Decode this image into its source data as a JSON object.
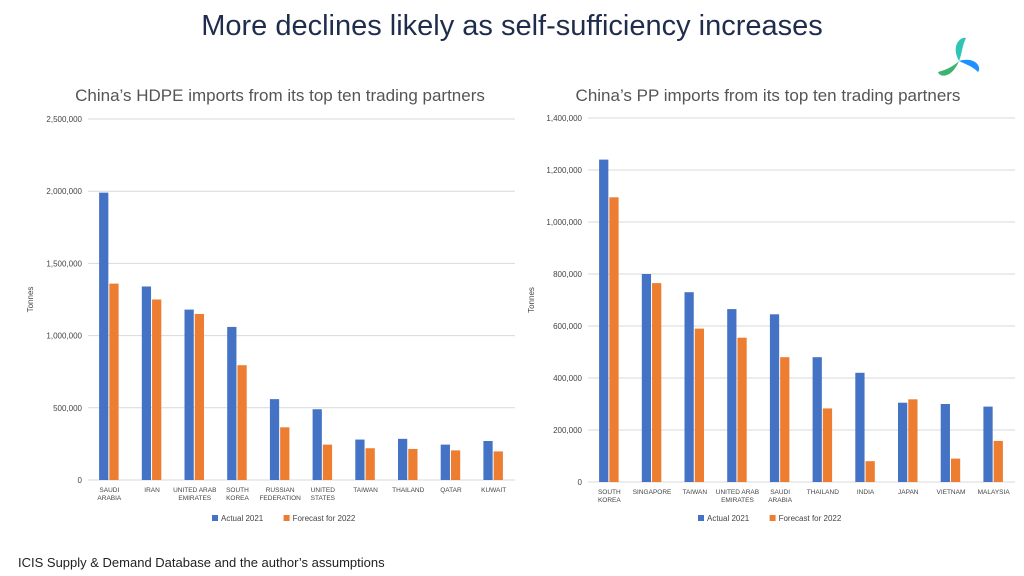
{
  "page": {
    "title": "More declines likely as self-sufficiency increases",
    "source": "ICIS Supply & Demand Database and the author’s assumptions",
    "logo_icon": "icis-swirl-icon"
  },
  "colors": {
    "actual": "#4472c4",
    "forecast": "#ed7d31",
    "grid": "#d9d9d9"
  },
  "chart_data": [
    {
      "type": "bar",
      "title": "China’s HDPE imports from its top ten trading partners",
      "ylabel": "Tonnes",
      "ylim": [
        0,
        2500000
      ],
      "yticks": [
        "0",
        "500,000",
        "1,000,000",
        "1,500,000",
        "2,000,000",
        "2,500,000"
      ],
      "ytick_values": [
        0,
        500000,
        1000000,
        1500000,
        2000000,
        2500000
      ],
      "categories": [
        [
          "SAUDI",
          "ARABIA"
        ],
        [
          "IRAN"
        ],
        [
          "UNITED ARAB",
          "EMIRATES"
        ],
        [
          "SOUTH",
          "KOREA"
        ],
        [
          "RUSSIAN",
          "FEDERATION"
        ],
        [
          "UNITED",
          "STATES"
        ],
        [
          "TAIWAN"
        ],
        [
          "THAILAND"
        ],
        [
          "QATAR"
        ],
        [
          "KUWAIT"
        ]
      ],
      "series": [
        {
          "name": "Actual 2021",
          "values": [
            1990000,
            1340000,
            1180000,
            1060000,
            560000,
            490000,
            280000,
            285000,
            245000,
            270000
          ]
        },
        {
          "name": "Forecast for 2022",
          "values": [
            1360000,
            1250000,
            1150000,
            795000,
            365000,
            245000,
            220000,
            215000,
            205000,
            198000
          ]
        }
      ],
      "grid": true,
      "legend": "bottom"
    },
    {
      "type": "bar",
      "title": "China’s PP imports from its top ten trading partners",
      "ylabel": "Tonnes",
      "ylim": [
        0,
        1400000
      ],
      "yticks": [
        "0",
        "200,000",
        "400,000",
        "600,000",
        "800,000",
        "1,000,000",
        "1,200,000",
        "1,400,000"
      ],
      "ytick_values": [
        0,
        200000,
        400000,
        600000,
        800000,
        1000000,
        1200000,
        1400000
      ],
      "categories": [
        [
          "SOUTH",
          "KOREA"
        ],
        [
          "SINGAPORE"
        ],
        [
          "TAIWAN"
        ],
        [
          "UNITED ARAB",
          "EMIRATES"
        ],
        [
          "SAUDI",
          "ARABIA"
        ],
        [
          "THAILAND"
        ],
        [
          "INDIA"
        ],
        [
          "JAPAN"
        ],
        [
          "VIETNAM"
        ],
        [
          "MALAYSIA"
        ]
      ],
      "series": [
        {
          "name": "Actual 2021",
          "values": [
            1240000,
            800000,
            730000,
            665000,
            645000,
            480000,
            420000,
            305000,
            300000,
            290000
          ]
        },
        {
          "name": "Forecast for 2022",
          "values": [
            1095000,
            765000,
            590000,
            555000,
            480000,
            283000,
            80000,
            318000,
            90000,
            158000
          ]
        }
      ],
      "grid": true,
      "legend": "bottom"
    }
  ]
}
